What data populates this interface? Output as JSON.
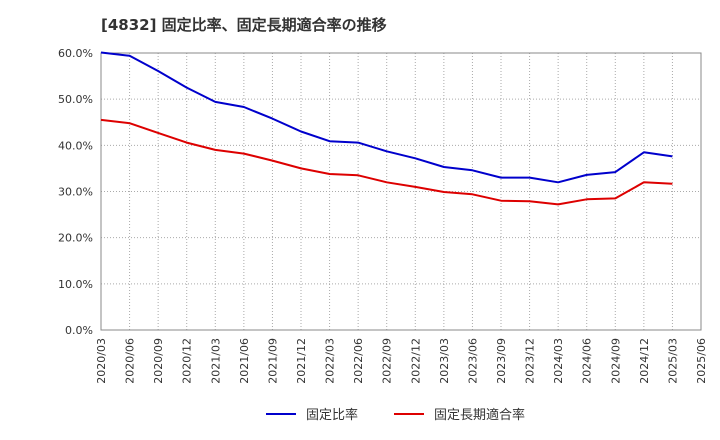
{
  "chart_data": {
    "type": "line",
    "title": "[4832]  固定比率、固定長期適合率の推移",
    "xlabel": "",
    "ylabel": "",
    "ylim": [
      0,
      0.6
    ],
    "yticks": [
      "0.0%",
      "10.0%",
      "20.0%",
      "30.0%",
      "40.0%",
      "50.0%",
      "60.0%"
    ],
    "categories": [
      "2020/03",
      "2020/06",
      "2020/09",
      "2020/12",
      "2021/03",
      "2021/06",
      "2021/09",
      "2021/12",
      "2022/03",
      "2022/06",
      "2022/09",
      "2022/12",
      "2023/03",
      "2023/06",
      "2023/09",
      "2023/12",
      "2024/03",
      "2024/06",
      "2024/09",
      "2024/12",
      "2025/03",
      "2025/06"
    ],
    "grid": true,
    "legend_position": "bottom",
    "series": [
      {
        "name": "固定比率",
        "color": "#0000cc",
        "values": [
          0.601,
          0.594,
          0.561,
          0.525,
          0.494,
          0.483,
          0.458,
          0.43,
          0.409,
          0.406,
          0.387,
          0.372,
          0.353,
          0.346,
          0.33,
          0.33,
          0.32,
          0.336,
          0.342,
          0.385,
          0.376,
          null
        ]
      },
      {
        "name": "固定長期適合率",
        "color": "#dd0000",
        "values": [
          0.455,
          0.448,
          0.427,
          0.406,
          0.39,
          0.382,
          0.367,
          0.35,
          0.338,
          0.335,
          0.32,
          0.31,
          0.299,
          0.294,
          0.28,
          0.279,
          0.272,
          0.283,
          0.285,
          0.32,
          0.317,
          null
        ]
      }
    ]
  }
}
